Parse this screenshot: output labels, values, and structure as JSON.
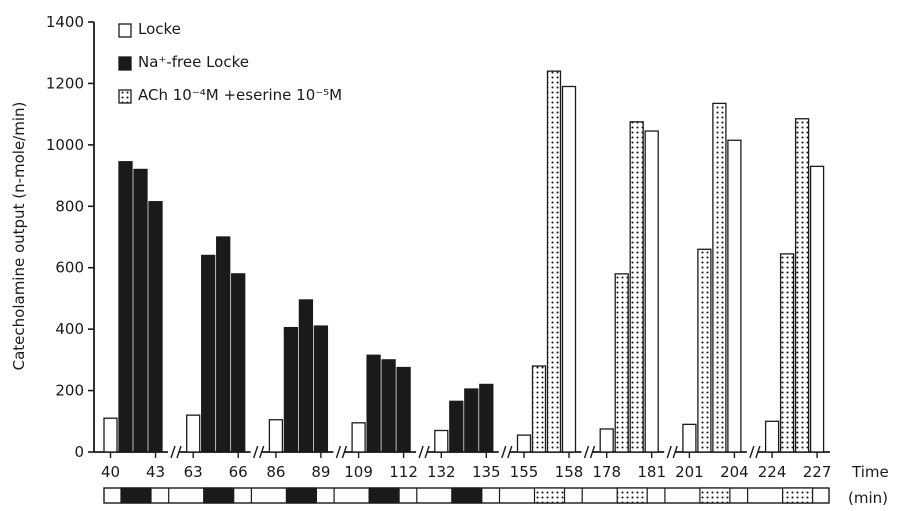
{
  "chart_data": {
    "type": "bar",
    "ylabel": "Catecholamine output (n-mole/min)",
    "xlabel_line1": "Time",
    "xlabel_line2": "(min)",
    "ylim": [
      0,
      1400
    ],
    "yticks": [
      "0",
      "200",
      "400",
      "600",
      "800",
      "1000",
      "1200",
      "1400"
    ],
    "legend": [
      {
        "name": "Locke",
        "fill": "white"
      },
      {
        "name": "Na⁺-free Locke",
        "fill": "solid"
      },
      {
        "name": "ACh 10⁻⁴M +eserine 10⁻⁵M",
        "fill": "dotted"
      }
    ],
    "groups": [
      {
        "start": "40",
        "end": "43",
        "bars": [
          {
            "fill": "white",
            "value": 110
          },
          {
            "fill": "solid",
            "value": 945
          },
          {
            "fill": "solid",
            "value": 920
          },
          {
            "fill": "solid",
            "value": 815
          }
        ]
      },
      {
        "start": "63",
        "end": "66",
        "bars": [
          {
            "fill": "white",
            "value": 120
          },
          {
            "fill": "solid",
            "value": 640
          },
          {
            "fill": "solid",
            "value": 700
          },
          {
            "fill": "solid",
            "value": 580
          }
        ]
      },
      {
        "start": "86",
        "end": "89",
        "bars": [
          {
            "fill": "white",
            "value": 105
          },
          {
            "fill": "solid",
            "value": 405
          },
          {
            "fill": "solid",
            "value": 495
          },
          {
            "fill": "solid",
            "value": 410
          }
        ]
      },
      {
        "start": "109",
        "end": "112",
        "bars": [
          {
            "fill": "white",
            "value": 95
          },
          {
            "fill": "solid",
            "value": 315
          },
          {
            "fill": "solid",
            "value": 300
          },
          {
            "fill": "solid",
            "value": 275
          }
        ]
      },
      {
        "start": "132",
        "end": "135",
        "bars": [
          {
            "fill": "white",
            "value": 70
          },
          {
            "fill": "solid",
            "value": 165
          },
          {
            "fill": "solid",
            "value": 205
          },
          {
            "fill": "solid",
            "value": 220
          }
        ]
      },
      {
        "start": "155",
        "end": "158",
        "bars": [
          {
            "fill": "white",
            "value": 55
          },
          {
            "fill": "dotted",
            "value": 280
          },
          {
            "fill": "dotted",
            "value": 1240
          },
          {
            "fill": "white",
            "value": 1190
          }
        ]
      },
      {
        "start": "178",
        "end": "181",
        "bars": [
          {
            "fill": "white",
            "value": 75
          },
          {
            "fill": "dotted",
            "value": 580
          },
          {
            "fill": "dotted",
            "value": 1075
          },
          {
            "fill": "white",
            "value": 1045
          }
        ]
      },
      {
        "start": "201",
        "end": "204",
        "bars": [
          {
            "fill": "white",
            "value": 90
          },
          {
            "fill": "dotted",
            "value": 660
          },
          {
            "fill": "dotted",
            "value": 1135
          },
          {
            "fill": "white",
            "value": 1015
          }
        ]
      },
      {
        "start": "224",
        "end": "227",
        "bars": [
          {
            "fill": "white",
            "value": 100
          },
          {
            "fill": "dotted",
            "value": 645
          },
          {
            "fill": "dotted",
            "value": 1085
          },
          {
            "fill": "white",
            "value": 930
          }
        ]
      }
    ],
    "grid": false,
    "legend_position": "top-left"
  }
}
